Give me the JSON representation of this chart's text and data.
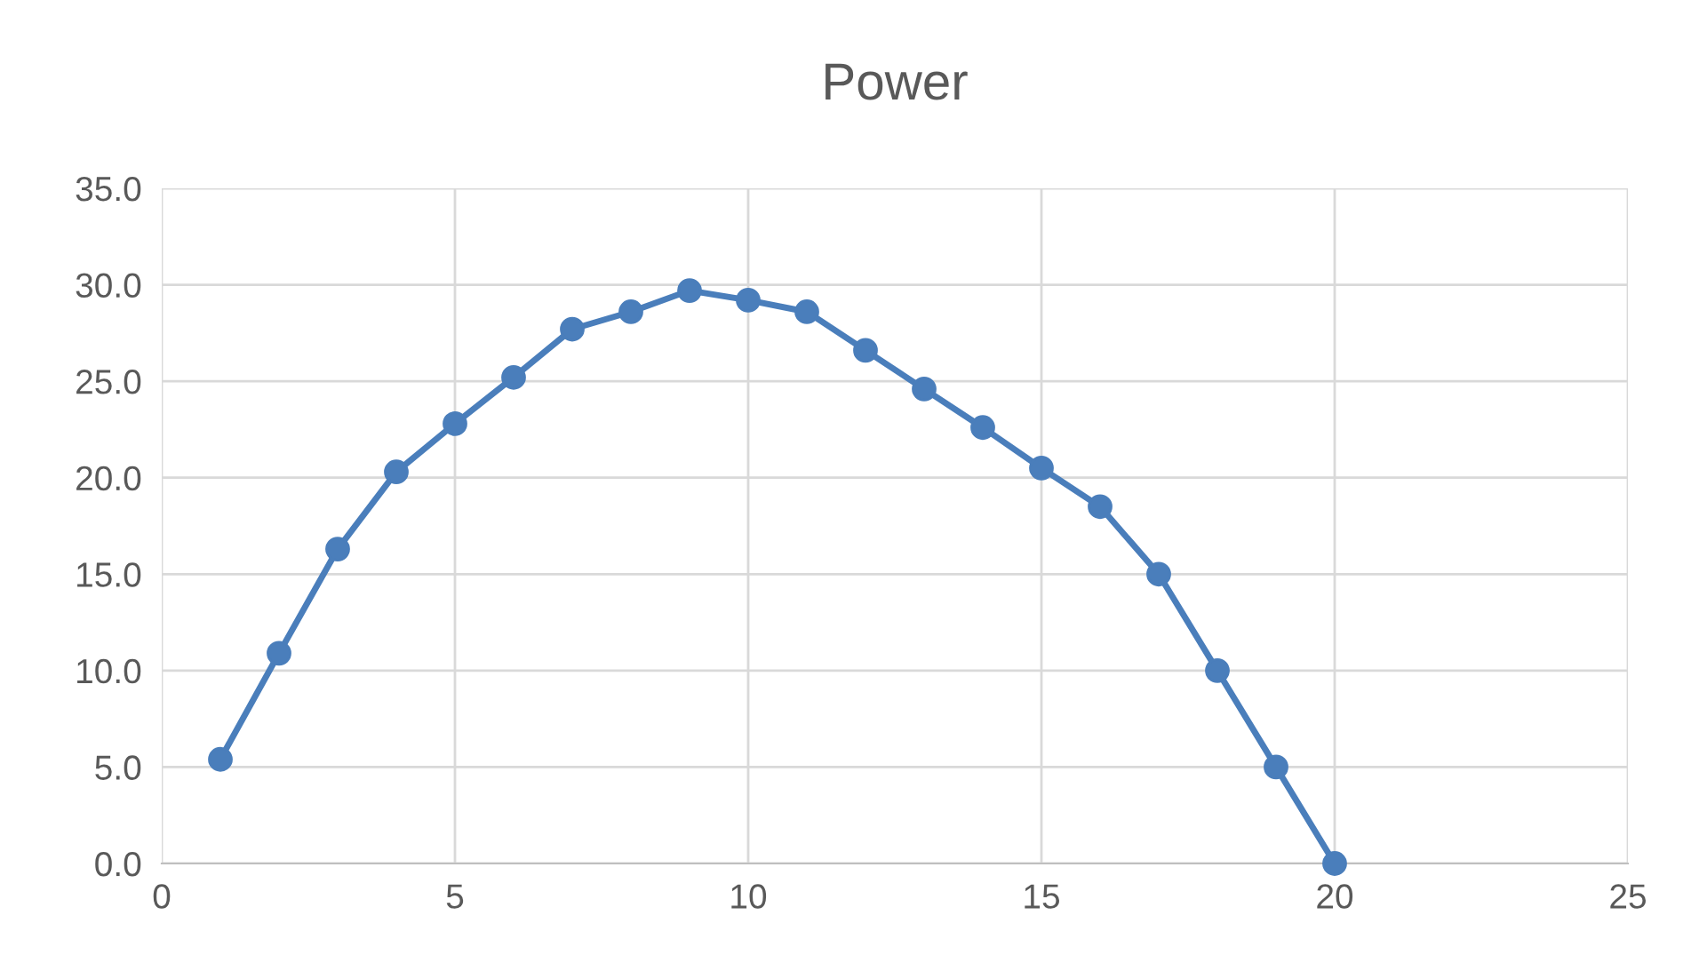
{
  "chart_data": {
    "type": "line",
    "title": "Power",
    "x": [
      1,
      2,
      3,
      4,
      5,
      6,
      7,
      8,
      9,
      10,
      11,
      12,
      13,
      14,
      15,
      16,
      17,
      18,
      19,
      20
    ],
    "series": [
      {
        "color": "#4a7ebb",
        "values": [
          5.4,
          10.9,
          16.3,
          20.3,
          22.8,
          25.2,
          27.7,
          28.6,
          29.7,
          29.2,
          28.6,
          26.6,
          24.6,
          22.6,
          20.5,
          18.5,
          15.0,
          10.0,
          5.0,
          0.0
        ]
      }
    ],
    "xlim": [
      0,
      25
    ],
    "xticks": [
      0,
      5,
      10,
      15,
      20,
      25
    ],
    "ylim": [
      0,
      35
    ],
    "yticks": [
      {
        "value": 0,
        "label": "0.0"
      },
      {
        "value": 5,
        "label": "5.0"
      },
      {
        "value": 10,
        "label": "10.0"
      },
      {
        "value": 15,
        "label": "15.0"
      },
      {
        "value": 20,
        "label": "20.0"
      },
      {
        "value": 25,
        "label": "25.0"
      },
      {
        "value": 30,
        "label": "30.0"
      },
      {
        "value": 35,
        "label": "35.0"
      }
    ],
    "grid": true,
    "marker": "circle",
    "line_style": "solid"
  }
}
